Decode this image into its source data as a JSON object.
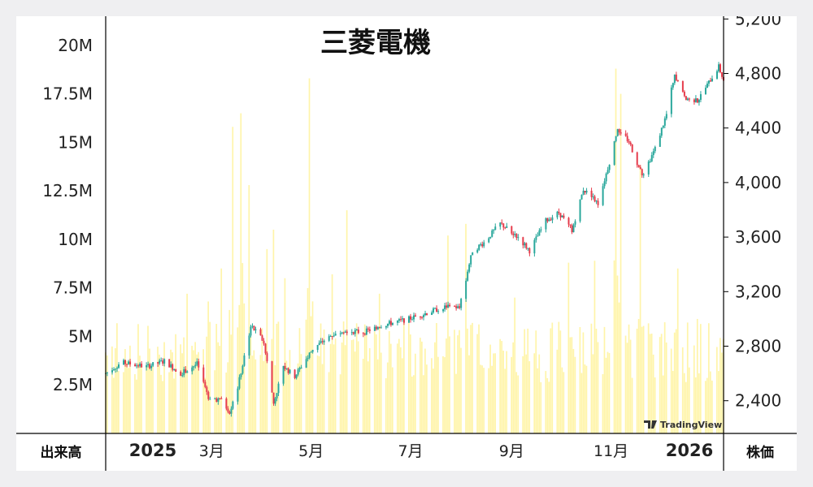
{
  "chart_data": {
    "type": "candlestick+bar",
    "title": "三菱電機",
    "volume_axis": {
      "label": "出来高",
      "ticks": [
        "2.5M",
        "5M",
        "7.5M",
        "10M",
        "12.5M",
        "15M",
        "17.5M",
        "20M"
      ],
      "tick_values": [
        2500000,
        5000000,
        7500000,
        10000000,
        12500000,
        15000000,
        17500000,
        20000000
      ],
      "range": [
        0,
        21500000
      ]
    },
    "price_axis": {
      "label": "株価",
      "ticks": [
        "2,400",
        "2,800",
        "3,200",
        "3,600",
        "4,000",
        "4,400",
        "4,800",
        "5,200"
      ],
      "tick_values": [
        2400,
        2800,
        3200,
        3600,
        4000,
        4400,
        4800,
        5200
      ],
      "range": [
        2160,
        5220
      ]
    },
    "x_ticks": [
      {
        "label": "2025",
        "date": "2025-01-01",
        "bold": true
      },
      {
        "label": "3月",
        "date": "2025-03-01"
      },
      {
        "label": "5月",
        "date": "2025-05-01"
      },
      {
        "label": "7月",
        "date": "2025-07-01"
      },
      {
        "label": "9月",
        "date": "2025-09-01"
      },
      {
        "label": "11月",
        "date": "2025-11-01"
      },
      {
        "label": "2026",
        "date": "2026-01-01",
        "bold": true
      }
    ],
    "x_range": [
      "2024-12-26",
      "2026-01-09"
    ],
    "price_path": [
      [
        "2024-12-26",
        2600
      ],
      [
        "2025-01-05",
        2680
      ],
      [
        "2025-01-20",
        2650
      ],
      [
        "2025-01-31",
        2690
      ],
      [
        "2025-02-10",
        2600
      ],
      [
        "2025-02-20",
        2670
      ],
      [
        "2025-02-27",
        2430
      ],
      [
        "2025-03-07",
        2400
      ],
      [
        "2025-03-12",
        2320
      ],
      [
        "2025-03-17",
        2500
      ],
      [
        "2025-03-21",
        2720
      ],
      [
        "2025-03-25",
        2950
      ],
      [
        "2025-04-01",
        2850
      ],
      [
        "2025-04-04",
        2700
      ],
      [
        "2025-04-08",
        2380
      ],
      [
        "2025-04-14",
        2650
      ],
      [
        "2025-04-21",
        2580
      ],
      [
        "2025-05-02",
        2780
      ],
      [
        "2025-05-12",
        2870
      ],
      [
        "2025-05-20",
        2920
      ],
      [
        "2025-06-02",
        2900
      ],
      [
        "2025-06-12",
        2950
      ],
      [
        "2025-06-30",
        3000
      ],
      [
        "2025-07-10",
        3040
      ],
      [
        "2025-07-25",
        3100
      ],
      [
        "2025-07-31",
        3080
      ],
      [
        "2025-08-05",
        3350
      ],
      [
        "2025-08-08",
        3500
      ],
      [
        "2025-08-15",
        3560
      ],
      [
        "2025-08-25",
        3700
      ],
      [
        "2025-09-05",
        3600
      ],
      [
        "2025-09-12",
        3500
      ],
      [
        "2025-09-22",
        3720
      ],
      [
        "2025-09-30",
        3780
      ],
      [
        "2025-10-08",
        3650
      ],
      [
        "2025-10-15",
        3950
      ],
      [
        "2025-10-24",
        3850
      ],
      [
        "2025-10-31",
        4150
      ],
      [
        "2025-11-05",
        4400
      ],
      [
        "2025-11-12",
        4300
      ],
      [
        "2025-11-20",
        4050
      ],
      [
        "2025-11-28",
        4250
      ],
      [
        "2025-12-05",
        4500
      ],
      [
        "2025-12-10",
        4800
      ],
      [
        "2025-12-16",
        4620
      ],
      [
        "2025-12-24",
        4600
      ],
      [
        "2026-01-06",
        4850
      ],
      [
        "2026-01-09",
        4750
      ]
    ],
    "volume_baseline": 3500000,
    "volume_spikes": [
      [
        "2025-01-02",
        5200000
      ],
      [
        "2025-02-14",
        7200000
      ],
      [
        "2025-02-27",
        6800000
      ],
      [
        "2025-03-07",
        8500000
      ],
      [
        "2025-03-14",
        15800000
      ],
      [
        "2025-03-19",
        16500000
      ],
      [
        "2025-03-24",
        12800000
      ],
      [
        "2025-04-04",
        9500000
      ],
      [
        "2025-04-08",
        10500000
      ],
      [
        "2025-04-15",
        8000000
      ],
      [
        "2025-04-30",
        18300000
      ],
      [
        "2025-05-14",
        8200000
      ],
      [
        "2025-05-23",
        11500000
      ],
      [
        "2025-06-12",
        7200000
      ],
      [
        "2025-07-24",
        10200000
      ],
      [
        "2025-08-04",
        10800000
      ],
      [
        "2025-09-03",
        7000000
      ],
      [
        "2025-10-06",
        8800000
      ],
      [
        "2025-10-22",
        8900000
      ],
      [
        "2025-11-04",
        18800000
      ],
      [
        "2025-11-07",
        17500000
      ],
      [
        "2025-11-19",
        13800000
      ],
      [
        "2025-12-12",
        8500000
      ],
      [
        "2025-12-24",
        5900000
      ]
    ],
    "colors": {
      "up": "#26a69a",
      "down": "#e53949",
      "volume": "#fff4a8"
    },
    "watermark": "TradingView",
    "grid": false
  }
}
